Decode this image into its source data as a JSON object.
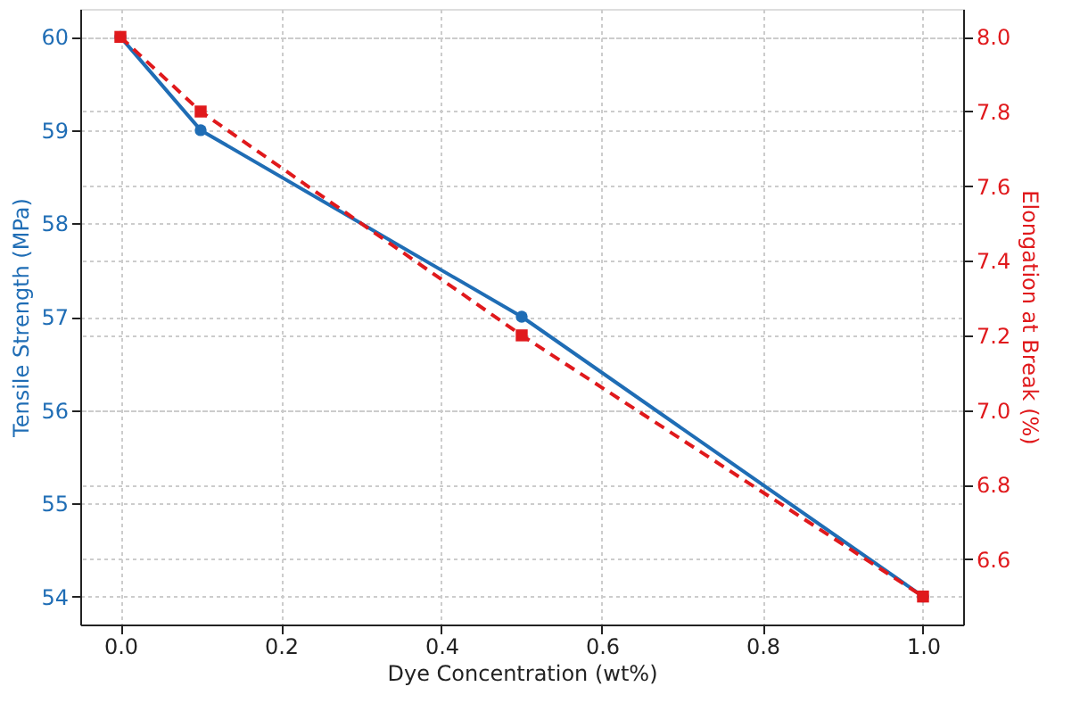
{
  "chart_data": {
    "type": "line",
    "xlabel": "Dye Concentration (wt%)",
    "ylabel": "Tensile Strength (MPa)",
    "y2label": "Elongation at Break (%)",
    "x": [
      0.0,
      0.1,
      0.5,
      1.0
    ],
    "series": [
      {
        "color": "#1f6db5",
        "values": [
          60,
          59,
          57,
          54
        ],
        "marker": "circle",
        "line_style": "solid"
      },
      {
        "color": "#e0191c",
        "values": [
          8.0,
          7.8,
          7.2,
          6.5
        ],
        "marker": "square",
        "line_style": "dashed",
        "axis": "y2"
      }
    ],
    "xlim": [
      -0.05,
      1.05
    ],
    "xticks": [
      {
        "value": 0,
        "label": "0.0"
      },
      0.2,
      0.4,
      0.6,
      0.8,
      {
        "value": 1,
        "label": "1.0"
      }
    ],
    "ylim": [
      53.7,
      60.3
    ],
    "yticks": [
      54,
      55,
      56,
      57,
      58,
      59,
      60
    ],
    "y2lim": [
      6.425,
      8.075
    ],
    "y2ticks": [
      6.6,
      6.8,
      {
        "value": 7,
        "label": "7.0"
      },
      7.2,
      7.4,
      7.6,
      7.8,
      {
        "value": 8,
        "label": "8.0"
      }
    ],
    "grid": true
  }
}
